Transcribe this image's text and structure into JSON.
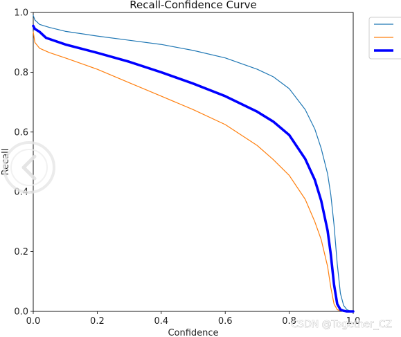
{
  "chart_data": {
    "type": "line",
    "title": "Recall-Confidence Curve",
    "xlabel": "Confidence",
    "ylabel": "Recall",
    "xlim": [
      0.0,
      1.0
    ],
    "ylim": [
      0.0,
      1.0
    ],
    "xticks": [
      "0.0",
      "0.2",
      "0.4",
      "0.6",
      "0.8",
      "1.0"
    ],
    "yticks": [
      "0.0",
      "0.2",
      "0.4",
      "0.6",
      "0.8",
      "1.0"
    ],
    "grid": false,
    "legend_position": "outside-top-right",
    "series": [
      {
        "color": "#1f77b4",
        "linewidth": "thin",
        "x": [
          0.0,
          0.005,
          0.02,
          0.05,
          0.1,
          0.2,
          0.3,
          0.4,
          0.5,
          0.6,
          0.7,
          0.75,
          0.8,
          0.85,
          0.88,
          0.9,
          0.92,
          0.93,
          0.94,
          0.95,
          0.96,
          0.97,
          0.98,
          0.99,
          1.0
        ],
        "y": [
          0.99,
          0.975,
          0.96,
          0.95,
          0.937,
          0.921,
          0.907,
          0.893,
          0.873,
          0.848,
          0.81,
          0.785,
          0.745,
          0.675,
          0.61,
          0.545,
          0.46,
          0.39,
          0.29,
          0.16,
          0.06,
          0.02,
          0.006,
          0.002,
          0.0
        ]
      },
      {
        "color": "#ff7f0e",
        "linewidth": "thin",
        "x": [
          0.0,
          0.005,
          0.02,
          0.05,
          0.1,
          0.2,
          0.3,
          0.4,
          0.5,
          0.6,
          0.7,
          0.75,
          0.8,
          0.85,
          0.88,
          0.9,
          0.92,
          0.93,
          0.94,
          0.95,
          0.96,
          0.97,
          0.98,
          0.99,
          1.0
        ],
        "y": [
          0.935,
          0.9,
          0.88,
          0.866,
          0.848,
          0.81,
          0.765,
          0.72,
          0.675,
          0.625,
          0.555,
          0.508,
          0.455,
          0.375,
          0.3,
          0.24,
          0.15,
          0.08,
          0.025,
          0.006,
          0.002,
          0.0,
          0.0,
          0.0,
          0.0
        ]
      },
      {
        "color": "#0000ff",
        "linewidth": "thick",
        "x": [
          0.0,
          0.005,
          0.02,
          0.04,
          0.1,
          0.2,
          0.3,
          0.4,
          0.5,
          0.6,
          0.7,
          0.75,
          0.8,
          0.85,
          0.88,
          0.9,
          0.92,
          0.93,
          0.94,
          0.95,
          0.96,
          0.97,
          0.98,
          0.99,
          1.0
        ],
        "y": [
          0.955,
          0.945,
          0.935,
          0.915,
          0.893,
          0.865,
          0.835,
          0.8,
          0.762,
          0.72,
          0.668,
          0.635,
          0.59,
          0.51,
          0.44,
          0.37,
          0.27,
          0.19,
          0.09,
          0.025,
          0.006,
          0.002,
          0.0,
          0.0,
          0.0
        ]
      }
    ]
  },
  "watermark": {
    "text": "CSDN @Together_CZ"
  }
}
